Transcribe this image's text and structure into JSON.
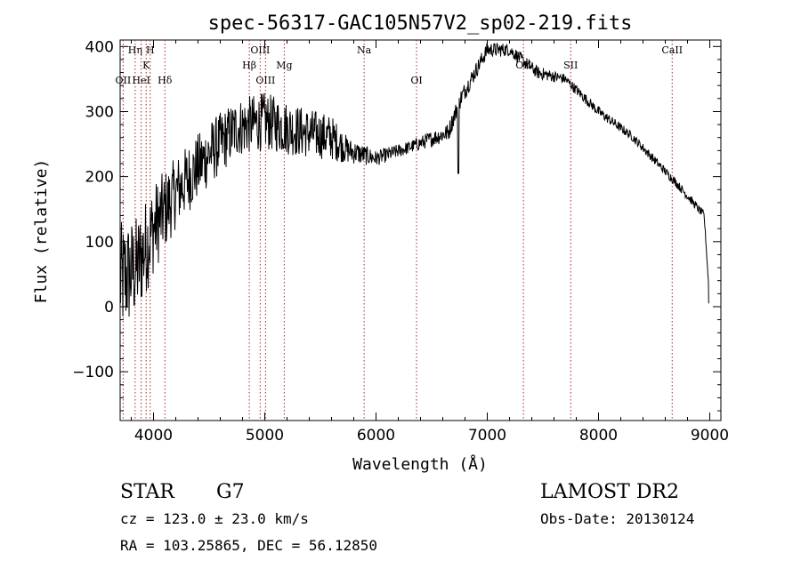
{
  "title": "spec-56317-GAC105N57V2_sp02-219.fits",
  "info": {
    "class_label": "STAR",
    "subclass_label": "G7",
    "cz_text": "cz = 123.0 ± 23.0 km/s",
    "radec_text": "RA = 103.25865, DEC =  56.12850",
    "survey_text": "LAMOST DR2",
    "obsdate_text": "Obs-Date: 20130124"
  },
  "chart_data": {
    "type": "line",
    "title": "spec-56317-GAC105N57V2_sp02-219.fits",
    "xlabel": "Wavelength (Å)",
    "ylabel": "Flux (relative)",
    "xlim": [
      3700,
      9100
    ],
    "ylim": [
      -175,
      410
    ],
    "xticks": [
      4000,
      5000,
      6000,
      7000,
      8000,
      9000
    ],
    "yticks": [
      -100,
      0,
      100,
      200,
      300,
      400
    ],
    "line_color": "#000000",
    "marker_color": "#b22222",
    "lines": [
      {
        "label": "Hη",
        "wave": 3835,
        "row": 1
      },
      {
        "label": "H",
        "wave": 3970,
        "row": 1
      },
      {
        "label": "K",
        "wave": 3934,
        "row": 2
      },
      {
        "label": "OII",
        "wave": 3727,
        "row": 3
      },
      {
        "label": "HeI",
        "wave": 3889,
        "row": 3
      },
      {
        "label": "Hδ",
        "wave": 4102,
        "row": 3
      },
      {
        "label": "OIII",
        "wave": 4959,
        "row": 1
      },
      {
        "label": "Hβ",
        "wave": 4861,
        "row": 2
      },
      {
        "label": "Mg",
        "wave": 5175,
        "row": 2
      },
      {
        "label": "OIII",
        "wave": 5007,
        "row": 3
      },
      {
        "label": "Na",
        "wave": 5893,
        "row": 1
      },
      {
        "label": "OI",
        "wave": 6364,
        "row": 3
      },
      {
        "label": "OII",
        "wave": 7325,
        "row": 2
      },
      {
        "label": "SII",
        "wave": 7750,
        "row": 2
      },
      {
        "label": "CaII",
        "wave": 8662,
        "row": 1
      }
    ],
    "spectrum_anchors": [
      {
        "x": 3700,
        "y": 40,
        "noise": 90
      },
      {
        "x": 3850,
        "y": 60,
        "noise": 80
      },
      {
        "x": 4000,
        "y": 120,
        "noise": 70
      },
      {
        "x": 4200,
        "y": 175,
        "noise": 55
      },
      {
        "x": 4500,
        "y": 235,
        "noise": 50
      },
      {
        "x": 4750,
        "y": 275,
        "noise": 45
      },
      {
        "x": 5000,
        "y": 285,
        "noise": 45
      },
      {
        "x": 5300,
        "y": 270,
        "noise": 40
      },
      {
        "x": 5600,
        "y": 260,
        "noise": 35
      },
      {
        "x": 5750,
        "y": 240,
        "noise": 20
      },
      {
        "x": 6000,
        "y": 228,
        "noise": 12
      },
      {
        "x": 6300,
        "y": 245,
        "noise": 10
      },
      {
        "x": 6650,
        "y": 268,
        "noise": 14
      },
      {
        "x": 6760,
        "y": 320,
        "noise": 14
      },
      {
        "x": 7000,
        "y": 395,
        "noise": 12
      },
      {
        "x": 7200,
        "y": 395,
        "noise": 10
      },
      {
        "x": 7450,
        "y": 360,
        "noise": 10
      },
      {
        "x": 7700,
        "y": 350,
        "noise": 8
      },
      {
        "x": 8000,
        "y": 300,
        "noise": 8
      },
      {
        "x": 8300,
        "y": 262,
        "noise": 7
      },
      {
        "x": 8700,
        "y": 190,
        "noise": 7
      },
      {
        "x": 8950,
        "y": 140,
        "noise": 6
      },
      {
        "x": 9000,
        "y": 5,
        "noise": 0
      }
    ]
  }
}
